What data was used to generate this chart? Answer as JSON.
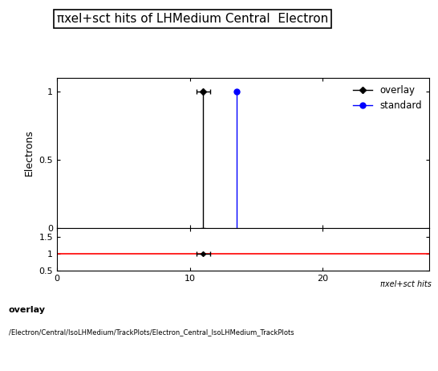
{
  "title": "πxel+sct hits of LHMedium Central  Electron",
  "title_fontsize": 11,
  "ylabel_main": "Electrons",
  "xlabel_ratio": "πxel+sct hits",
  "overlay_x": 11.0,
  "overlay_y": 1.0,
  "overlay_xerr": 0.5,
  "overlay_yerr_low": 1.0,
  "overlay_yerr_high": 0.0,
  "standard_x": 13.5,
  "standard_y": 1.0,
  "standard_xerr": 0.0,
  "standard_yerr_low": 1.0,
  "standard_yerr_high": 0.0,
  "overlay_color": "#000000",
  "standard_color": "#0000ff",
  "ratio_line_color": "#ff0000",
  "ratio_overlay_x": 11.0,
  "ratio_overlay_y": 1.0,
  "xlim": [
    0,
    28
  ],
  "ylim_main": [
    0,
    1.1
  ],
  "ylim_ratio": [
    0.5,
    1.75
  ],
  "ratio_yticks": [
    0.5,
    1.0,
    1.5
  ],
  "footer_line1": "overlay",
  "footer_line2": "/Electron/Central/IsoLHMedium/TrackPlots/Electron_Central_IsoLHMedium_TrackPlots",
  "background_color": "#ffffff",
  "legend_entries": [
    "overlay",
    "standard"
  ],
  "legend_markers": [
    "D",
    "o"
  ],
  "legend_colors": [
    "#000000",
    "#0000ff"
  ]
}
